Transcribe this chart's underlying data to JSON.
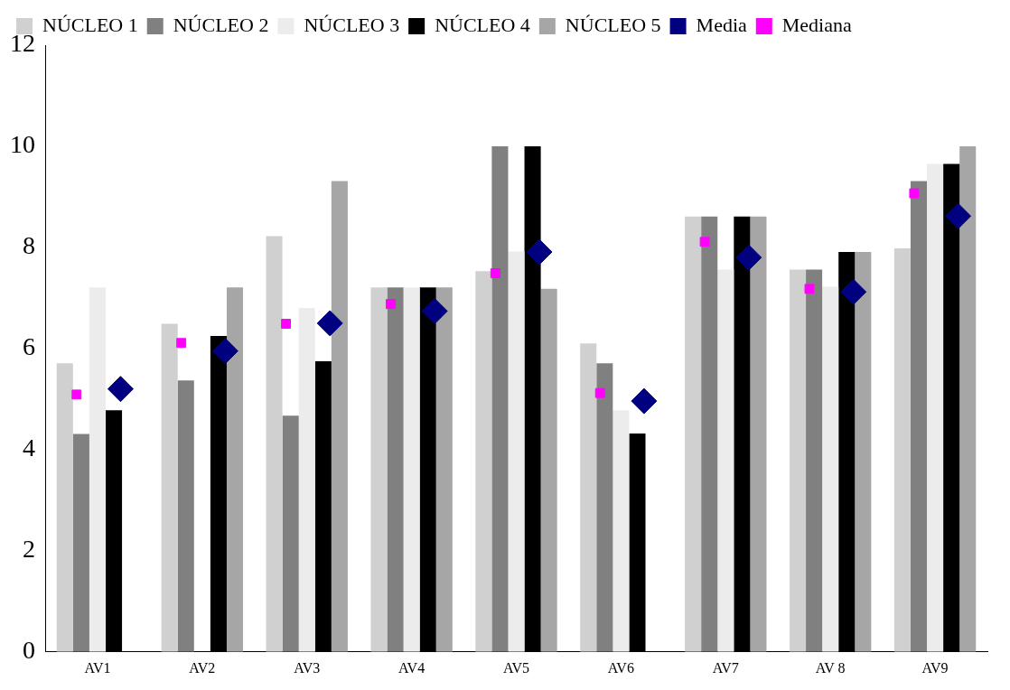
{
  "chart_data": {
    "type": "bar",
    "categories": [
      "AV1",
      "AV2",
      "AV3",
      "AV4",
      "AV5",
      "AV6",
      "AV7",
      "AV 8",
      "AV9"
    ],
    "series": [
      {
        "name": "NÚCLEO 1",
        "color": "#d0d0d0",
        "values": [
          5.71,
          6.49,
          8.22,
          7.21,
          7.53,
          6.1,
          8.61,
          7.56,
          7.98
        ]
      },
      {
        "name": "NÚCLEO 2",
        "color": "#808080",
        "values": [
          4.31,
          5.37,
          4.67,
          7.21,
          10,
          5.71,
          8.61,
          7.56,
          9.31
        ]
      },
      {
        "name": "NÚCLEO 3",
        "color": "#ececec",
        "values": [
          7.21,
          null,
          6.8,
          7.21,
          7.92,
          4.78,
          7.56,
          7.22,
          9.65
        ]
      },
      {
        "name": "NÚCLEO 4",
        "color": "#000000",
        "values": [
          4.78,
          6.25,
          5.75,
          7.21,
          10,
          4.32,
          8.61,
          7.91,
          9.65
        ]
      },
      {
        "name": "NÚCLEO 5",
        "color": "#a6a6a6",
        "values": [
          null,
          7.21,
          9.31,
          7.21,
          7.18,
          null,
          8.61,
          7.91,
          10
        ]
      },
      {
        "name": "Media",
        "type": "scatter",
        "marker": "diamond",
        "color": "#000080",
        "x": [
          "AV1",
          "AV2",
          "AV3",
          "AV4",
          "AV5",
          "AV6",
          "AV7",
          "AV 8",
          "AV9"
        ],
        "values": [
          5.2,
          5.95,
          6.5,
          6.74,
          7.91,
          4.96,
          7.8,
          7.12,
          8.62
        ]
      },
      {
        "name": "Mediana",
        "type": "scatter",
        "marker": "square",
        "color": "#ff00ff",
        "x": [
          "AV1",
          "AV2",
          "AV3",
          "AV4",
          "AV5",
          "AV6",
          "AV7",
          "AV 8",
          "AV9"
        ],
        "values": [
          5.09,
          6.11,
          6.49,
          6.88,
          7.49,
          5.12,
          8.11,
          7.18,
          9.07
        ]
      }
    ],
    "ylim": [
      0,
      12
    ],
    "yticks": [
      0,
      2,
      4,
      6,
      8,
      10,
      12
    ],
    "grid": false,
    "legend": "top"
  }
}
